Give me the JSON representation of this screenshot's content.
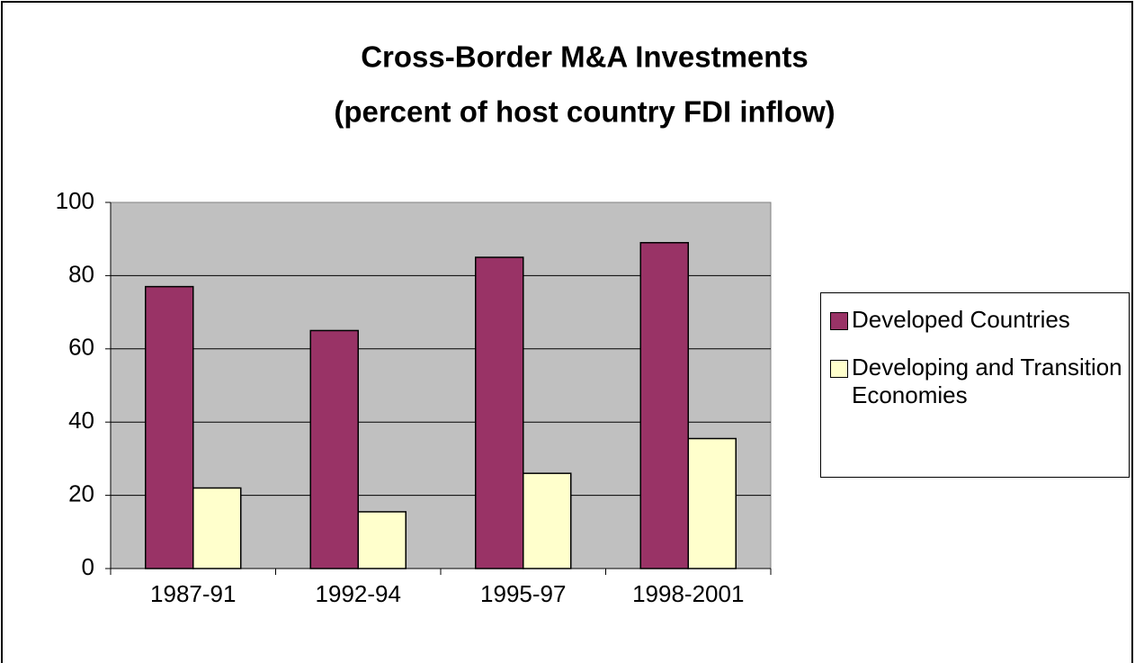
{
  "chart_data": {
    "type": "bar",
    "title": "Cross-Border M&A Investments",
    "subtitle": "(percent of host country FDI inflow)",
    "categories": [
      "1987-91",
      "1992-94",
      "1995-97",
      "1998-2001"
    ],
    "series": [
      {
        "name": "Developed Countries",
        "color": "#993366",
        "values": [
          77,
          65,
          85,
          89
        ]
      },
      {
        "name": "Developing and Transition Economies",
        "color": "#ffffcc",
        "values": [
          22,
          15.5,
          26,
          35.5
        ]
      }
    ],
    "ylim": [
      0,
      100
    ],
    "yticks": [
      0,
      20,
      40,
      60,
      80,
      100
    ],
    "grid": true,
    "legend": "right"
  }
}
